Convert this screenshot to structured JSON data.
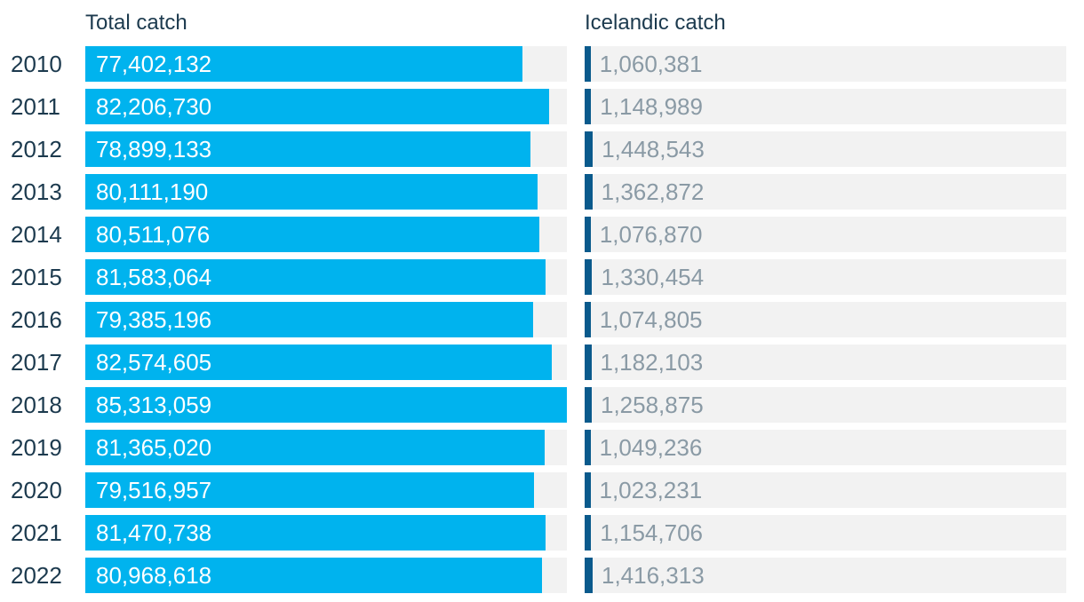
{
  "chart_data": {
    "type": "bar",
    "orientation": "horizontal",
    "categories": [
      "2010",
      "2011",
      "2012",
      "2013",
      "2014",
      "2015",
      "2016",
      "2017",
      "2018",
      "2019",
      "2020",
      "2021",
      "2022"
    ],
    "series": [
      {
        "name": "Total catch",
        "values": [
          77402132,
          82206730,
          78899133,
          80111190,
          80511076,
          81583064,
          79385196,
          82574605,
          85313059,
          81365020,
          79516957,
          81470738,
          80968618
        ],
        "labels": [
          "77,402,132",
          "82,206,730",
          "78,899,133",
          "80,111,190",
          "80,511,076",
          "81,583,064",
          "79,385,196",
          "82,574,605",
          "85,313,059",
          "81,365,020",
          "79,516,957",
          "81,470,738",
          "80,968,618"
        ],
        "color": "#00b3ee"
      },
      {
        "name": "Icelandic catch",
        "values": [
          1060381,
          1148989,
          1448543,
          1362872,
          1076870,
          1330454,
          1074805,
          1182103,
          1258875,
          1049236,
          1023231,
          1154706,
          1416313
        ],
        "labels": [
          "1,060,381",
          "1,148,989",
          "1,448,543",
          "1,362,872",
          "1,076,870",
          "1,330,454",
          "1,074,805",
          "1,182,103",
          "1,258,875",
          "1,049,236",
          "1,023,231",
          "1,154,706",
          "1,416,313"
        ],
        "color": "#0a5a8c"
      }
    ],
    "track_color": "#f2f2f2",
    "xlim": [
      0,
      85313059
    ]
  }
}
